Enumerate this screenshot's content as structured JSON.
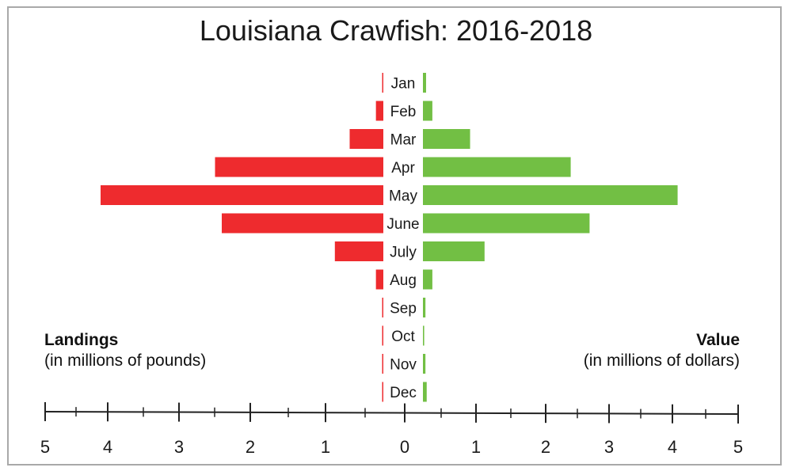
{
  "chart_data": {
    "type": "bar",
    "title": "Louisiana Crawfish: 2016-2018",
    "categories": [
      "Jan",
      "Feb",
      "Mar",
      "Apr",
      "May",
      "June",
      "July",
      "Aug",
      "Sep",
      "Oct",
      "Nov",
      "Dec"
    ],
    "series": [
      {
        "name": "Landings",
        "unit_label": "(in millions of pounds)",
        "color": "#ee2b2e",
        "values": [
          0.01,
          0.11,
          0.5,
          2.5,
          4.2,
          2.4,
          0.72,
          0.11,
          0.01,
          0.01,
          0.01,
          0.01
        ]
      },
      {
        "name": "Value",
        "unit_label": "(in millions of dollars)",
        "color": "#72bf44",
        "values": [
          0.05,
          0.15,
          0.75,
          2.35,
          4.05,
          2.65,
          0.98,
          0.15,
          0.04,
          0.02,
          0.04,
          0.06
        ]
      }
    ],
    "left_axis_ticks": [
      "5",
      "4",
      "3",
      "2",
      "1",
      "0"
    ],
    "right_axis_ticks": [
      "1",
      "2",
      "3",
      "4",
      "5"
    ],
    "xlim": [
      0,
      5
    ]
  }
}
